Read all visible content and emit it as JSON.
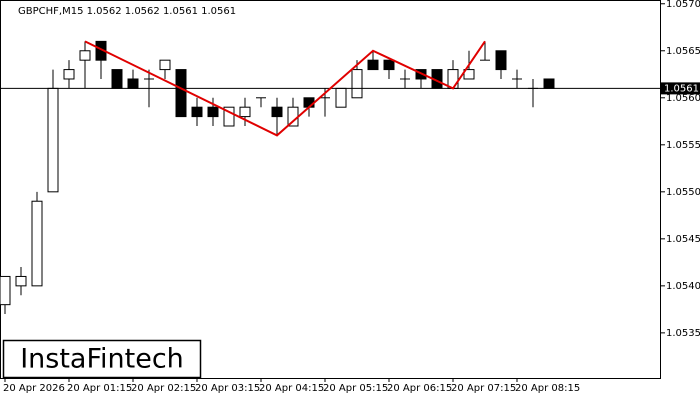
{
  "chart_data": {
    "type": "candlestick",
    "title": "GBPCHF,M15  1.0562 1.0562 1.0561 1.0561",
    "brand": "InstaFintech",
    "categories": [
      "20 Apr 2026",
      null,
      null,
      null,
      "20 Apr 01:15",
      null,
      null,
      null,
      "20 Apr 02:15",
      null,
      null,
      null,
      "20 Apr 03:15",
      null,
      null,
      null,
      "20 Apr 04:15",
      null,
      null,
      null,
      "20 Apr 05:15",
      null,
      null,
      null,
      "20 Apr 06:15",
      null,
      null,
      null,
      "20 Apr 07:15",
      null,
      null,
      null,
      "20 Apr 08:15",
      null,
      null
    ],
    "open": [
      1.0538,
      1.054,
      1.054,
      1.055,
      1.0562,
      1.0564,
      1.0566,
      1.0563,
      1.0562,
      1.0562,
      1.0563,
      1.0563,
      1.0559,
      1.0559,
      1.0557,
      1.0558,
      1.056,
      1.0559,
      1.0557,
      1.056,
      1.056,
      1.0559,
      1.056,
      1.0564,
      1.0564,
      1.0562,
      1.0563,
      1.0563,
      1.0561,
      1.0562,
      1.0564,
      1.0565,
      1.0562,
      1.0561,
      1.0562
    ],
    "high": [
      1.0541,
      1.0542,
      1.055,
      1.0563,
      1.0564,
      1.0566,
      1.0566,
      1.0563,
      1.0563,
      1.0563,
      1.0564,
      1.0563,
      1.056,
      1.056,
      1.0559,
      1.056,
      1.056,
      1.056,
      1.056,
      1.056,
      1.0561,
      1.0561,
      1.0564,
      1.0565,
      1.0564,
      1.0563,
      1.0563,
      1.0563,
      1.0564,
      1.0565,
      1.0566,
      1.0565,
      1.0563,
      1.0562,
      1.0562
    ],
    "low": [
      1.0537,
      1.0539,
      1.054,
      1.055,
      1.0561,
      1.0561,
      1.0562,
      1.0561,
      1.0561,
      1.0559,
      1.0562,
      1.0558,
      1.0557,
      1.0557,
      1.0557,
      1.0557,
      1.0559,
      1.0556,
      1.0557,
      1.0558,
      1.0558,
      1.0559,
      1.056,
      1.0563,
      1.0562,
      1.0561,
      1.0561,
      1.0561,
      1.0561,
      1.0562,
      1.0564,
      1.0562,
      1.0561,
      1.0559,
      1.0561
    ],
    "close": [
      1.0541,
      1.0541,
      1.0549,
      1.0561,
      1.0563,
      1.0565,
      1.0564,
      1.0561,
      1.0561,
      1.0562,
      1.0564,
      1.0558,
      1.0558,
      1.0558,
      1.0559,
      1.0559,
      1.056,
      1.0558,
      1.0559,
      1.0559,
      1.056,
      1.0561,
      1.0563,
      1.0563,
      1.0563,
      1.0562,
      1.0562,
      1.0561,
      1.0563,
      1.0563,
      1.0564,
      1.0563,
      1.0562,
      1.0561,
      1.0561
    ],
    "up_color": "#ffffff",
    "down_color": "#000000",
    "last_price": 1.0561,
    "pattern": {
      "color": "#e00000",
      "x": [
        5,
        17,
        23,
        28,
        30
      ],
      "values": [
        1.0566,
        1.0556,
        1.0565,
        1.0561,
        1.0566
      ]
    },
    "ylim": [
      1.05302,
      1.05704
    ],
    "yticks": [
      {
        "value": 1.057,
        "label": "1.0570"
      },
      {
        "value": 1.0565,
        "label": "1.0565"
      },
      {
        "value": 1.056,
        "label": "1.0560"
      },
      {
        "value": 1.0555,
        "label": "1.0555"
      },
      {
        "value": 1.055,
        "label": "1.0550"
      },
      {
        "value": 1.0545,
        "label": "1.0545"
      },
      {
        "value": 1.054,
        "label": "1.0540"
      },
      {
        "value": 1.0535,
        "label": "1.0535"
      }
    ]
  }
}
